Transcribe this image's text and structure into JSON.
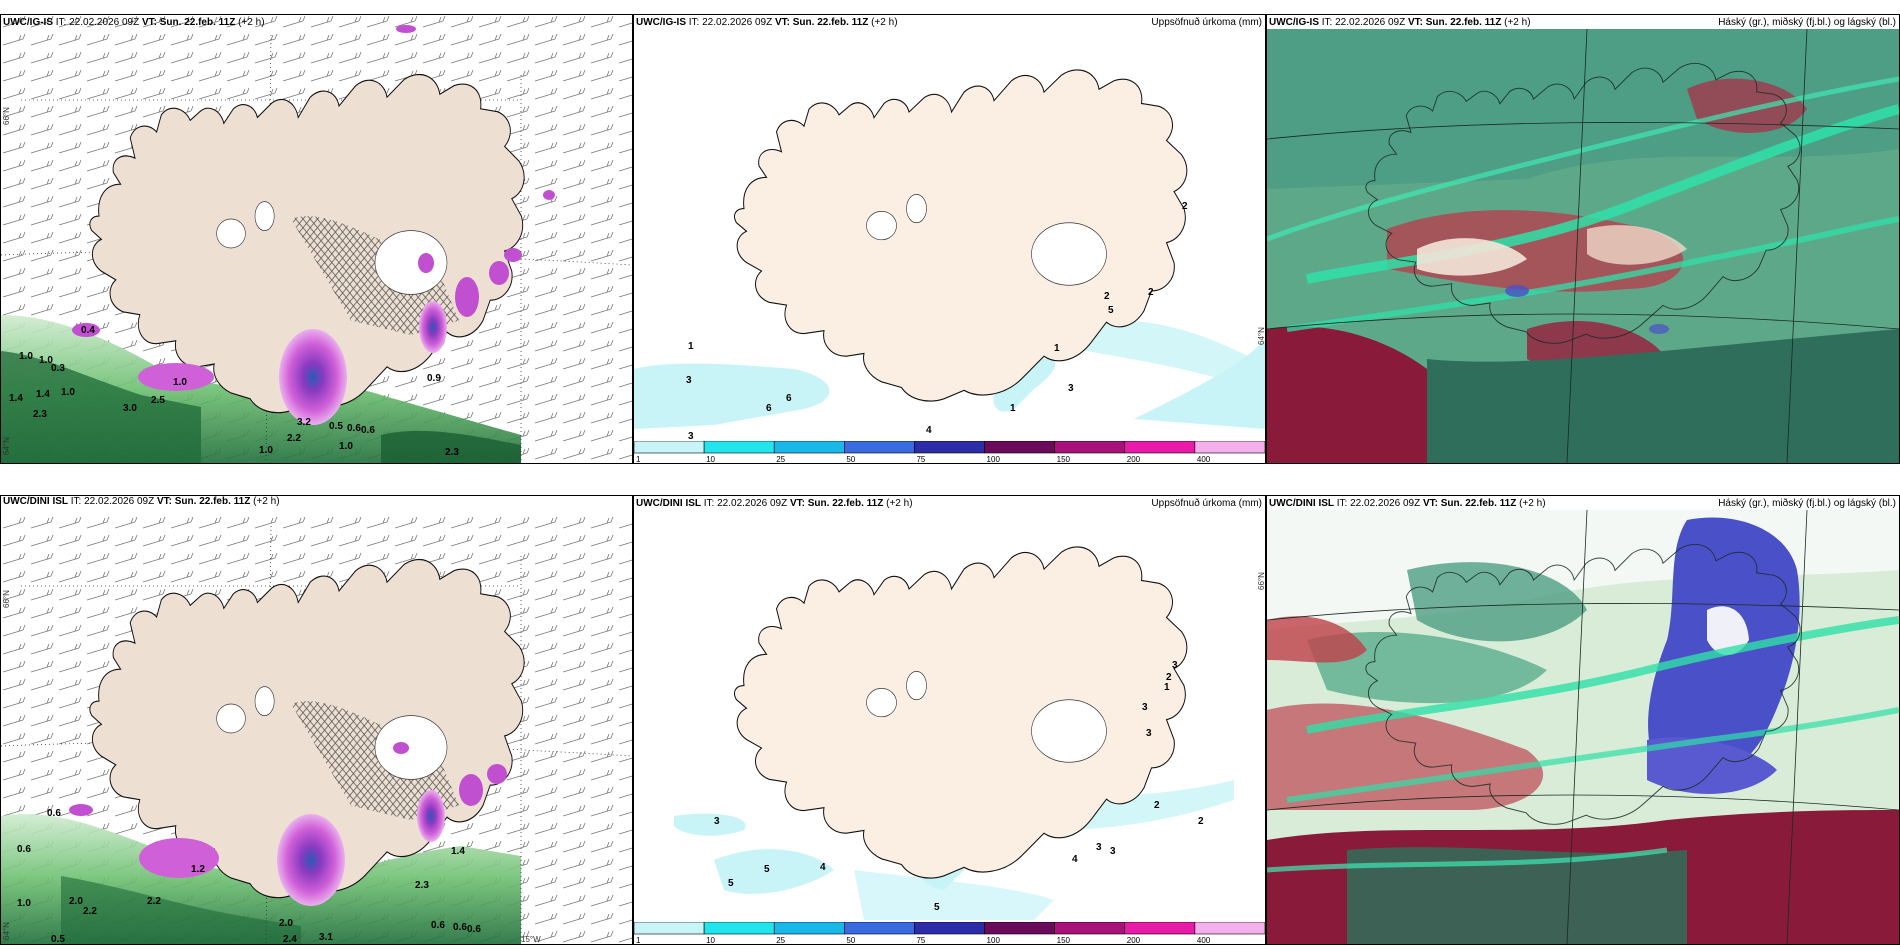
{
  "top_row": {
    "wind_panel": {
      "model": "UWC/IG-IS",
      "it_label": "IT:",
      "it_value": "22.02.2026 09Z",
      "vt_label": "VT:",
      "vt_value": "Sun. 22.feb. 11Z",
      "lead": "(+2 h)",
      "lat_label": "66°N",
      "lat_label_lower": "64°N",
      "precip_labels": [
        "0.4",
        "1.0",
        "1.0",
        "0.3",
        "1.0",
        "1.4",
        "1.4",
        "1.0",
        "2.3",
        "3.0",
        "2.5",
        "3.2",
        "2.2",
        "1.0",
        "0.5",
        "0.6",
        "0.6",
        "1.0",
        "2.3",
        "0.9"
      ]
    },
    "precip_panel": {
      "model": "UWC/IG-IS",
      "it_label": "IT:",
      "it_value": "22.02.2026 09Z",
      "vt_label": "VT:",
      "vt_value": "Sun. 22.feb. 11Z",
      "lead": "(+2 h)",
      "right_title": "Uppsöfnuð úrkoma (mm)",
      "lat_label": "64°N",
      "values": [
        "1",
        "3",
        "3",
        "6",
        "6",
        "4",
        "1",
        "3",
        "1",
        "2",
        "2",
        "2",
        "5",
        "1"
      ]
    },
    "cloud_panel": {
      "model": "UWC/IG-IS",
      "it_label": "IT:",
      "it_value": "22.02.2026 09Z",
      "vt_label": "VT:",
      "vt_value": "Sun. 22.feb. 11Z",
      "lead": "(+2 h)",
      "right_title": "Háský (gr.), miðský (fj.bl.) og lágský (bl.)"
    }
  },
  "bottom_row": {
    "wind_panel": {
      "model": "UWC/DINI ISL",
      "it_label": "IT:",
      "it_value": "22.02.2026 09Z",
      "vt_label": "VT:",
      "vt_value": "Sun. 22.feb. 11Z",
      "lead": "(+2",
      "lead_wrap": "h)",
      "lat_label": "66°N",
      "lat_label_lower": "64°N",
      "lon_label": "15°W",
      "precip_labels": [
        "0.6",
        "0.6",
        "1.0",
        "2.0",
        "2.2",
        "2.2",
        "1.2",
        "2.0",
        "2.4",
        "3.1",
        "0.6",
        "0.6",
        "0.6",
        "0.5",
        "2.3",
        "1.4"
      ]
    },
    "precip_panel": {
      "model": "UWC/DINI ISL",
      "it_label": "IT:",
      "it_value": "22.02.2026 09Z",
      "vt_label": "VT:",
      "vt_value": "Sun. 22.feb. 11Z",
      "lead": "(+2 h)",
      "right_title": "Uppsöfnuð úrkoma (mm)",
      "lat_label": "66°N",
      "values": [
        "3",
        "5",
        "5",
        "4",
        "5",
        "3",
        "2",
        "1",
        "3",
        "3",
        "3",
        "2",
        "3",
        "4",
        "2"
      ]
    },
    "cloud_panel": {
      "model": "UWC/DINI ISL",
      "it_label": "IT:",
      "it_value": "22.02.2026 09Z",
      "vt_label": "VT:",
      "vt_value": "Sun. 22.feb. 11Z",
      "lead": "(+2 h)",
      "right_title": "Háský (gr.), miðský (fj.bl.) og lágský (bl.)"
    }
  },
  "precip_colorbar": {
    "ticks": [
      "1",
      "10",
      "25",
      "50",
      "75",
      "100",
      "150",
      "200",
      "400"
    ],
    "colors": [
      "#c8f4f8",
      "#22e4ec",
      "#18b8e8",
      "#3a6ae0",
      "#2c2ca8",
      "#6a0a5a",
      "#a8107a",
      "#e81aa8",
      "#f4b0ec"
    ]
  },
  "colors": {
    "land": "#f2e8dc",
    "land_wind": "#ede0d2",
    "sea_green": "#3a8a76",
    "cloud_teal": "#2fd1a0",
    "cloud_red": "#9a1c3c",
    "cloud_blue": "#4a50c8",
    "precip_magenta": "#c050d0",
    "precip_green": "#2e8a48"
  }
}
